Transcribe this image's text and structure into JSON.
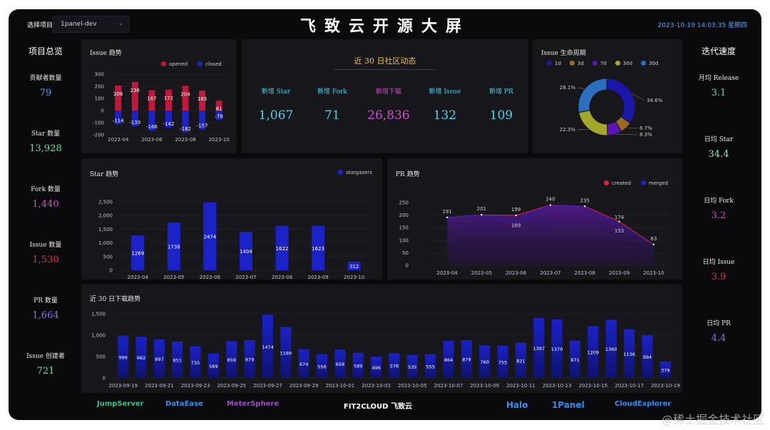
{
  "header": {
    "select_label": "选择项目",
    "project": "1panel-dev",
    "title": "飞致云开源大屏",
    "datetime": "2023-10-19 14:03:35 星期四"
  },
  "left_panel": {
    "title": "项目总览",
    "items": [
      {
        "label": "贡献者数量",
        "value": "79",
        "color": "#4aa8ff"
      },
      {
        "label": "Star 数量",
        "value": "13,928",
        "color": "#5be3a0"
      },
      {
        "label": "Fork 数量",
        "value": "1,440",
        "color": "#d14dd1"
      },
      {
        "label": "Issue 数量",
        "value": "1,530",
        "color": "#e0344a"
      },
      {
        "label": "PR 数量",
        "value": "1,664",
        "color": "#8a6cf0"
      },
      {
        "label": "Issue 创建者",
        "value": "721",
        "color": "#5be3a0"
      }
    ]
  },
  "right_panel": {
    "title": "迭代速度",
    "items": [
      {
        "label": "月均 Release",
        "value": "3.1",
        "color": "#5be3a0"
      },
      {
        "label": "日均 Star",
        "value": "34.4",
        "color": "#7ff0b0"
      },
      {
        "label": "日均 Fork",
        "value": "3.2",
        "color": "#d14dd1"
      },
      {
        "label": "日均 Issue",
        "value": "3.9",
        "color": "#e0344a"
      },
      {
        "label": "日均 PR",
        "value": "4.4",
        "color": "#8a6cf0"
      }
    ]
  },
  "community": {
    "title": "近 30 日社区动态",
    "stats": [
      {
        "label": "新增 Star",
        "value": "1,067",
        "color": "#4fd0e8"
      },
      {
        "label": "新增 Fork",
        "value": "71",
        "color": "#4fd0e8"
      },
      {
        "label": "新增下载",
        "value": "26,836",
        "color": "#d14dd1"
      },
      {
        "label": "新增 Issue",
        "value": "132",
        "color": "#4fd0e8"
      },
      {
        "label": "新增 PR",
        "value": "109",
        "color": "#4fd0e8"
      }
    ]
  },
  "chart_data": [
    {
      "id": "issue-trend",
      "type": "bar",
      "title": "Issue 趋势",
      "categories": [
        "2023-04",
        "2023-05",
        "2023-06",
        "2023-07",
        "2023-08",
        "2023-09",
        "2023-10"
      ],
      "x_tick_labels": [
        "2023-04",
        "2023-06",
        "2023-08",
        "2023-10"
      ],
      "series": [
        {
          "name": "opened",
          "values": [
            206,
            236,
            167,
            172,
            204,
            165,
            81
          ],
          "color": "#c0183a"
        },
        {
          "name": "closed",
          "values": [
            -114,
            -130,
            -166,
            -142,
            -182,
            -157,
            -78
          ],
          "color": "#1b22c8"
        }
      ],
      "ylim": [
        -200,
        300
      ],
      "yticks": [
        -200,
        -100,
        0,
        100,
        200,
        300
      ],
      "legend": "top"
    },
    {
      "id": "issue-lifecycle",
      "type": "pie",
      "title": "Issue 生命周期",
      "labels": [
        "1d",
        "3d",
        "7d",
        "30d",
        "30d"
      ],
      "values": [
        34.6,
        6.7,
        8.3,
        22.3,
        28.1
      ],
      "value_labels": [
        "34.6%",
        "6.7%",
        "8.3%",
        "22.3%",
        "28.1%"
      ],
      "colors": [
        "#1a16a8",
        "#9c6a1c",
        "#5a17b8",
        "#a3a82a",
        "#2b6fc0"
      ],
      "legend": "top"
    },
    {
      "id": "star-trend",
      "type": "bar",
      "title": "Star 趋势",
      "categories": [
        "2023-04",
        "2023-05",
        "2023-06",
        "2023-07",
        "2023-08",
        "2023-09",
        "2023-10"
      ],
      "series": [
        {
          "name": "stargazers",
          "values": [
            1269,
            1738,
            2474,
            1404,
            1622,
            1623,
            312
          ],
          "color": "#1b22c8"
        }
      ],
      "ylim": [
        0,
        2500
      ],
      "yticks": [
        0,
        500,
        1000,
        1500,
        2000,
        2500
      ],
      "ytick_labels": [
        "0",
        "500",
        "1,000",
        "1,500",
        "2,000",
        "2,500"
      ],
      "legend": "top-right"
    },
    {
      "id": "pr-trend",
      "type": "area",
      "title": "PR 趋势",
      "categories": [
        "2023-04",
        "2023-05",
        "2023-06",
        "2023-07",
        "2023-08",
        "2023-09",
        "2023-10"
      ],
      "series": [
        {
          "name": "created",
          "values": [
            191,
            201,
            199,
            240,
            235,
            174,
            83
          ],
          "color": "#e0203a"
        },
        {
          "name": "merged",
          "values": [
            191,
            201,
            169,
            240,
            235,
            153,
            83
          ],
          "color": "#1b22c8"
        }
      ],
      "point_labels": [
        "191",
        "201",
        "199",
        "169",
        "240",
        "235",
        "174",
        "153",
        "83"
      ],
      "ylim": [
        0,
        250
      ],
      "yticks": [
        0,
        50,
        100,
        150,
        200,
        250
      ],
      "legend": "top-right"
    },
    {
      "id": "download-trend",
      "type": "bar",
      "title": "近 30 日下载趋势",
      "categories": [
        "2023-09-19",
        "2023-09-20",
        "2023-09-21",
        "2023-09-22",
        "2023-09-23",
        "2023-09-24",
        "2023-09-25",
        "2023-09-26",
        "2023-09-27",
        "2023-09-28",
        "2023-09-29",
        "2023-09-30",
        "2023-10-01",
        "2023-10-02",
        "2023-10-03",
        "2023-10-04",
        "2023-10-05",
        "2023-10-06",
        "2023-10-07",
        "2023-10-08",
        "2023-10-09",
        "2023-10-10",
        "2023-10-11",
        "2023-10-12",
        "2023-10-13",
        "2023-10-14",
        "2023-10-15",
        "2023-10-16",
        "2023-10-17",
        "2023-10-18",
        "2023-10-19"
      ],
      "x_tick_labels": [
        "2023-09-19",
        "2023-09-21",
        "2023-09-23",
        "2023-09-25",
        "2023-09-27",
        "2023-09-29",
        "2023-10-01",
        "2023-10-03",
        "2023-10-05",
        "2023-10-07",
        "2023-10-09",
        "2023-10-11",
        "2023-10-13",
        "2023-10-15",
        "2023-10-17",
        "2023-10-19"
      ],
      "series": [
        {
          "name": "",
          "values": [
            986,
            962,
            897,
            851,
            735,
            569,
            859,
            879,
            1474,
            1189,
            674,
            556,
            659,
            589,
            496,
            578,
            535,
            555,
            864,
            879,
            760,
            755,
            821,
            1397,
            1370,
            871,
            1209,
            1360,
            1136,
            994,
            379
          ],
          "color": "#1b22c8"
        }
      ],
      "ylim": [
        0,
        1500
      ],
      "yticks": [
        0,
        500,
        1000,
        1500
      ],
      "ytick_labels": [
        "0",
        "500",
        "1,000",
        "1,500"
      ]
    }
  ],
  "footer": {
    "logos": [
      {
        "name": "JumpServer",
        "color": "#38c08a"
      },
      {
        "name": "DataEase",
        "color": "#3a8ee6"
      },
      {
        "name": "MeterSphere",
        "color": "#9a4fc0"
      },
      {
        "name": "FIT2CLOUD 飞致云",
        "color": "#ffffff"
      },
      {
        "name": "Halo",
        "color": "#2f8ff0"
      },
      {
        "name": "1Panel",
        "color": "#2f8ff0"
      },
      {
        "name": "CloudExplorer",
        "color": "#2f8ff0"
      }
    ]
  },
  "watermark": "@稀土掘金技术社区"
}
